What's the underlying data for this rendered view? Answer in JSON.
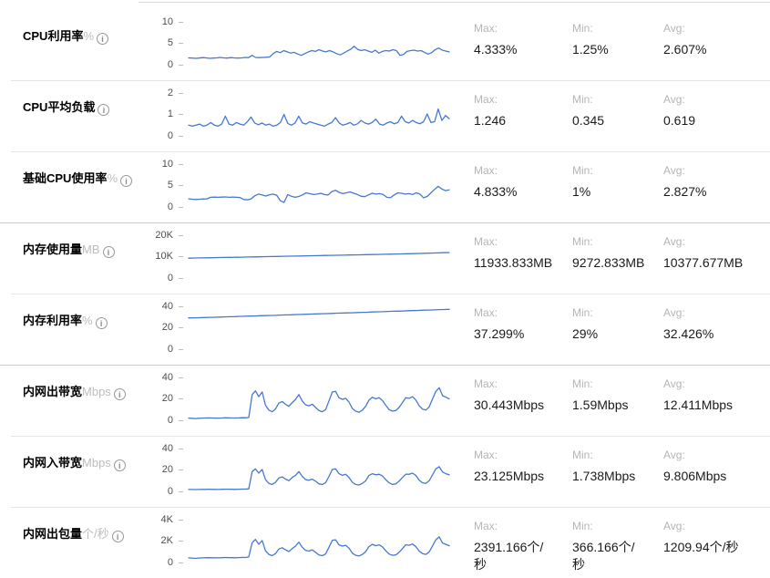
{
  "colors": {
    "line": "#4678d2",
    "title": "#000000",
    "unit": "#bdbdbd",
    "tick": "#4d4d4d",
    "stat_label": "#b5b5b5",
    "stat_value": "#1a1a1a",
    "separator_inner": "#e5e5e5",
    "separator_group": "#cbcbcb"
  },
  "icons": {
    "info_glyph": "i"
  },
  "stats_header": {
    "max": "Max:",
    "min": "Min:",
    "avg": "Avg:"
  },
  "rows": [
    {
      "title": "CPU利用率",
      "unit": "%",
      "group_start": false,
      "axis": {
        "ticks": [
          "10",
          "5",
          "0"
        ],
        "ylim": [
          0,
          10
        ]
      },
      "stats": {
        "max": "4.333%",
        "min": "1.25%",
        "avg": "2.607%"
      },
      "series": {
        "type": "line",
        "values": [
          1.6,
          1.55,
          1.5,
          1.55,
          1.65,
          1.6,
          1.5,
          1.55,
          1.6,
          1.7,
          1.6,
          1.55,
          1.65,
          1.6,
          1.55,
          1.6,
          1.7,
          1.65,
          2.2,
          1.7,
          1.65,
          1.7,
          1.75,
          1.8,
          2.6,
          3.1,
          2.8,
          3.3,
          3.0,
          2.7,
          2.9,
          2.5,
          2.2,
          2.6,
          3.0,
          3.3,
          3.1,
          3.5,
          3.2,
          3.0,
          3.3,
          3.0,
          2.6,
          2.3,
          2.7,
          3.2,
          3.6,
          4.3,
          3.6,
          3.3,
          3.5,
          3.2,
          2.9,
          3.4,
          2.7,
          3.1,
          3.3,
          3.2,
          3.5,
          3.3,
          2.2,
          2.4,
          3.1,
          3.3,
          3.4,
          3.2,
          3.3,
          2.9,
          2.5,
          2.8,
          3.5,
          3.9,
          3.4,
          3.2,
          3.0
        ]
      }
    },
    {
      "title": "CPU平均负载",
      "unit": "",
      "group_start": false,
      "axis": {
        "ticks": [
          "2",
          "1",
          "0"
        ],
        "ylim": [
          0,
          2
        ]
      },
      "stats": {
        "max": "1.246",
        "min": "0.345",
        "avg": "0.619"
      },
      "series": {
        "type": "line",
        "values": [
          0.5,
          0.45,
          0.5,
          0.55,
          0.45,
          0.5,
          0.62,
          0.5,
          0.45,
          0.55,
          0.92,
          0.55,
          0.5,
          0.62,
          0.55,
          0.5,
          0.66,
          0.88,
          0.6,
          0.52,
          0.6,
          0.5,
          0.55,
          0.45,
          0.5,
          0.62,
          1.0,
          0.58,
          0.5,
          0.6,
          0.92,
          0.6,
          0.55,
          0.66,
          0.6,
          0.55,
          0.5,
          0.45,
          0.55,
          0.62,
          0.85,
          0.6,
          0.5,
          0.55,
          0.62,
          0.5,
          0.56,
          0.72,
          0.6,
          0.55,
          0.62,
          0.78,
          0.55,
          0.5,
          0.6,
          0.66,
          0.56,
          0.62,
          0.92,
          0.66,
          0.6,
          0.72,
          0.62,
          0.56,
          0.66,
          1.02,
          0.62,
          0.66,
          1.25,
          0.72,
          0.95,
          0.8
        ]
      }
    },
    {
      "title": "基础CPU使用率",
      "unit": "%",
      "group_start": false,
      "axis": {
        "ticks": [
          "10",
          "5",
          "0"
        ],
        "ylim": [
          0,
          10
        ]
      },
      "stats": {
        "max": "4.833%",
        "min": "1%",
        "avg": "2.827%"
      },
      "series": {
        "type": "line",
        "values": [
          1.9,
          1.8,
          1.75,
          1.8,
          1.85,
          1.9,
          2.25,
          2.3,
          2.25,
          2.3,
          2.35,
          2.25,
          2.3,
          2.25,
          2.2,
          1.75,
          1.65,
          1.85,
          2.6,
          3.0,
          2.8,
          2.55,
          2.8,
          3.0,
          2.7,
          1.45,
          1.05,
          2.9,
          2.5,
          2.25,
          2.45,
          2.8,
          3.3,
          3.1,
          2.9,
          3.0,
          3.2,
          2.9,
          2.8,
          3.6,
          3.9,
          3.4,
          3.1,
          3.3,
          3.5,
          3.2,
          2.9,
          2.5,
          2.4,
          2.8,
          3.2,
          3.0,
          3.1,
          2.9,
          2.25,
          2.15,
          2.8,
          3.3,
          3.2,
          3.0,
          3.1,
          2.9,
          3.3,
          3.0,
          2.15,
          2.45,
          3.3,
          4.1,
          4.8,
          4.2,
          3.8,
          4.0
        ]
      }
    },
    {
      "title": "内存使用量",
      "unit": "MB",
      "group_start": true,
      "axis": {
        "ticks": [
          "20K",
          "10K",
          "0"
        ],
        "ylim": [
          0,
          20000
        ]
      },
      "stats": {
        "max": "11933.833MB",
        "min": "9272.833MB",
        "avg": "10377.677MB"
      },
      "series": {
        "type": "line",
        "values": [
          9280,
          9350,
          9400,
          9430,
          9500,
          9560,
          9600,
          9650,
          9720,
          9760,
          9820,
          9880,
          9930,
          9990,
          10040,
          10090,
          10150,
          10200,
          10260,
          10310,
          10370,
          10430,
          10480,
          10540,
          10590,
          10650,
          10700,
          10760,
          10810,
          10870,
          10930,
          10980,
          11040,
          11090,
          11150,
          11220,
          11280,
          11350,
          11420,
          11500,
          11580,
          11660,
          11750,
          11840,
          11930
        ]
      }
    },
    {
      "title": "内存利用率",
      "unit": "%",
      "group_start": false,
      "axis": {
        "ticks": [
          "40",
          "20",
          "0"
        ],
        "ylim": [
          0,
          40
        ]
      },
      "stats": {
        "max": "37.299%",
        "min": "29%",
        "avg": "32.426%"
      },
      "series": {
        "type": "line",
        "values": [
          29.2,
          29.3,
          29.4,
          29.5,
          29.7,
          29.8,
          30.0,
          30.1,
          30.3,
          30.4,
          30.6,
          30.7,
          30.9,
          31.0,
          31.2,
          31.3,
          31.5,
          31.6,
          31.8,
          32.0,
          32.1,
          32.3,
          32.4,
          32.6,
          32.8,
          32.9,
          33.1,
          33.2,
          33.4,
          33.6,
          33.7,
          33.9,
          34.0,
          34.2,
          34.4,
          34.5,
          34.7,
          34.9,
          35.0,
          35.2,
          35.4,
          35.5,
          35.7,
          35.9,
          36.0,
          36.2,
          36.4,
          36.5,
          36.7,
          36.9,
          37.0,
          37.2
        ]
      }
    },
    {
      "title": "内网出带宽",
      "unit": "Mbps",
      "group_start": true,
      "axis": {
        "ticks": [
          "40",
          "20",
          "0"
        ],
        "ylim": [
          0,
          40
        ]
      },
      "stats": {
        "max": "30.443Mbps",
        "min": "1.59Mbps",
        "avg": "12.411Mbps"
      },
      "series": {
        "type": "line",
        "values": [
          2.0,
          1.9,
          1.6,
          1.9,
          2.0,
          2.1,
          2.2,
          2.1,
          2.05,
          2.0,
          2.15,
          2.3,
          2.2,
          2.15,
          2.1,
          2.25,
          2.4,
          2.3,
          2.6,
          24.0,
          27.5,
          22.0,
          26.5,
          14.0,
          9.5,
          8.0,
          10.5,
          16.0,
          17.5,
          15.0,
          13.0,
          16.5,
          19.5,
          24.0,
          18.0,
          14.5,
          13.5,
          15.0,
          12.0,
          9.0,
          8.0,
          10.0,
          18.0,
          26.5,
          27.0,
          21.0,
          19.5,
          20.5,
          17.0,
          11.0,
          8.5,
          7.5,
          9.5,
          13.0,
          19.0,
          21.5,
          20.0,
          21.0,
          18.5,
          14.0,
          10.0,
          8.5,
          9.0,
          12.0,
          16.5,
          21.0,
          20.5,
          22.0,
          19.0,
          13.5,
          10.5,
          9.5,
          12.5,
          20.0,
          27.0,
          30.4,
          23.0,
          21.5,
          20.0
        ]
      }
    },
    {
      "title": "内网入带宽",
      "unit": "Mbps",
      "group_start": false,
      "axis": {
        "ticks": [
          "40",
          "20",
          "0"
        ],
        "ylim": [
          0,
          40
        ]
      },
      "stats": {
        "max": "23.125Mbps",
        "min": "1.738Mbps",
        "avg": "9.806Mbps"
      },
      "series": {
        "type": "line",
        "values": [
          1.8,
          1.75,
          1.74,
          1.75,
          1.85,
          1.9,
          2.0,
          1.9,
          1.85,
          1.8,
          1.95,
          2.05,
          2.0,
          1.95,
          1.9,
          2.0,
          2.15,
          2.1,
          2.4,
          18.5,
          21.0,
          17.0,
          20.5,
          11.0,
          7.5,
          6.5,
          8.5,
          12.5,
          13.5,
          11.5,
          10.0,
          13.0,
          15.0,
          18.5,
          14.0,
          11.0,
          10.5,
          11.5,
          9.5,
          7.0,
          6.5,
          8.0,
          14.0,
          20.5,
          21.0,
          16.5,
          15.0,
          16.0,
          13.0,
          8.5,
          6.5,
          6.0,
          7.5,
          10.0,
          15.0,
          16.5,
          15.5,
          16.0,
          14.5,
          11.0,
          8.0,
          6.5,
          7.0,
          9.5,
          13.0,
          16.0,
          16.0,
          17.0,
          15.0,
          10.5,
          8.0,
          7.5,
          10.0,
          15.5,
          21.0,
          23.1,
          18.0,
          16.5,
          15.5
        ]
      }
    },
    {
      "title": "内网出包量",
      "unit": "个/秒",
      "group_start": false,
      "axis": {
        "ticks": [
          "4K",
          "2K",
          "0"
        ],
        "ylim": [
          0,
          4000
        ]
      },
      "stats": {
        "max": "2391.166个/\n秒",
        "min": "366.166个/\n秒",
        "avg": "1209.94个/秒"
      },
      "series": {
        "type": "line",
        "values": [
          430,
          420,
          380,
          420,
          430,
          440,
          455,
          445,
          440,
          435,
          450,
          465,
          455,
          450,
          445,
          460,
          475,
          465,
          520,
          1850,
          2150,
          1700,
          2050,
          1100,
          760,
          640,
          830,
          1260,
          1380,
          1180,
          1020,
          1300,
          1530,
          1900,
          1420,
          1140,
          1060,
          1180,
          950,
          710,
          640,
          790,
          1420,
          2080,
          2120,
          1650,
          1530,
          1610,
          1340,
          870,
          670,
          610,
          760,
          1020,
          1500,
          1690,
          1570,
          1650,
          1460,
          1100,
          790,
          670,
          710,
          950,
          1300,
          1650,
          1610,
          1730,
          1490,
          1060,
          830,
          760,
          990,
          1560,
          2120,
          2391,
          1810,
          1690,
          1570
        ]
      }
    }
  ]
}
